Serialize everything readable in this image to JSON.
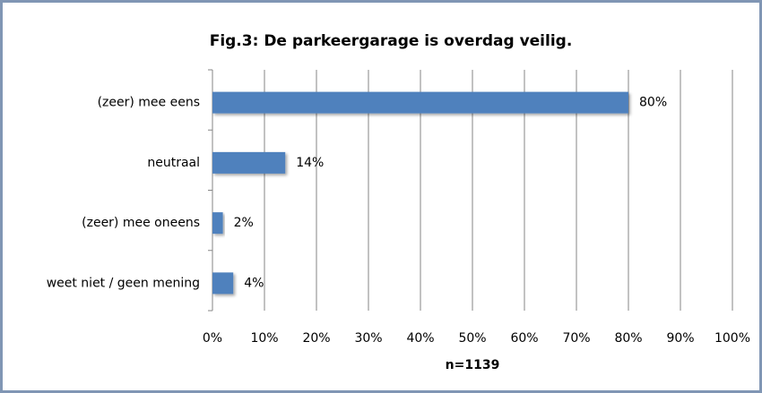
{
  "chart_data": {
    "type": "bar",
    "orientation": "horizontal",
    "title": "Fig.3: De parkeergarage is overdag veilig.",
    "x_label": "n=1139",
    "categories": [
      "(zeer) mee eens",
      "neutraal",
      "(zeer) mee oneens",
      "weet niet / geen mening"
    ],
    "values": [
      80,
      14,
      2,
      4
    ],
    "value_labels": [
      "80%",
      "14%",
      "2%",
      "4%"
    ],
    "color": "#4f81bd",
    "xlim": [
      0,
      100
    ],
    "xticks": [
      {
        "value": 0,
        "label": "0%"
      },
      {
        "value": 10,
        "label": "10%"
      },
      {
        "value": 20,
        "label": "20%"
      },
      {
        "value": 30,
        "label": "30%"
      },
      {
        "value": 40,
        "label": "40%"
      },
      {
        "value": 50,
        "label": "50%"
      },
      {
        "value": 60,
        "label": "60%"
      },
      {
        "value": 70,
        "label": "70%"
      },
      {
        "value": 80,
        "label": "80%"
      },
      {
        "value": 90,
        "label": "90%"
      },
      {
        "value": 100,
        "label": "100%"
      }
    ],
    "grid": true
  }
}
